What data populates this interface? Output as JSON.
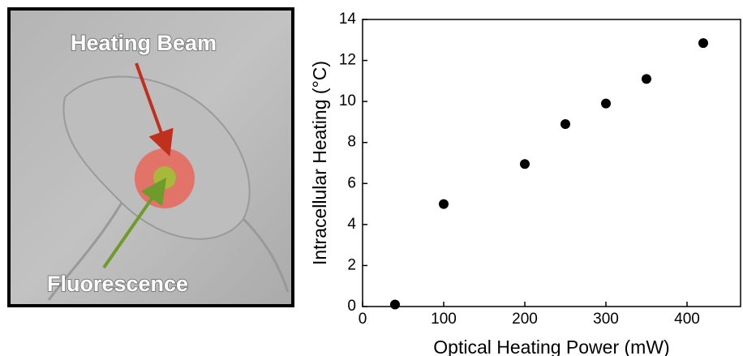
{
  "image_panel": {
    "annotations": [
      "Heating Beam",
      "Fluorescence"
    ]
  },
  "chart_data": {
    "type": "scatter",
    "x_label": "Optical Heating Power (mW)",
    "y_label": "Intracellular Heating (°C)",
    "x": [
      40,
      100,
      200,
      250,
      300,
      350,
      420
    ],
    "values": [
      0.1,
      5,
      6.95,
      8.9,
      9.9,
      11.1,
      12.85
    ],
    "color": "#000000",
    "xlim": [
      0,
      466
    ],
    "xticks": [
      0,
      100,
      200,
      300,
      400
    ],
    "ylim": [
      0,
      14
    ],
    "yticks": [
      0,
      2,
      4,
      6,
      8,
      10,
      12,
      14
    ]
  }
}
